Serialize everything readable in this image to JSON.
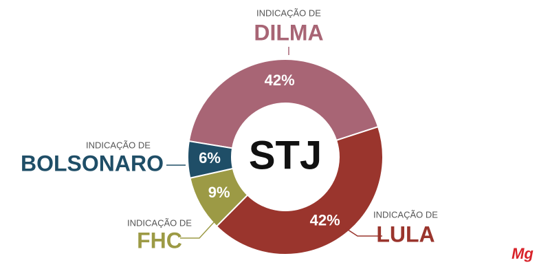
{
  "chart_data": {
    "type": "donut",
    "center_label": "STJ",
    "label_prefix": "INDICAÇÃO DE",
    "categories": [
      "DILMA",
      "LULA",
      "FHC",
      "BOLSONARO"
    ],
    "values": [
      42,
      42,
      9,
      6
    ],
    "value_labels": [
      "42%",
      "42%",
      "9%",
      "6%"
    ],
    "colors": [
      "#a86575",
      "#9a352d",
      "#9c9a45",
      "#1f4e67"
    ]
  },
  "logo": "Mg"
}
